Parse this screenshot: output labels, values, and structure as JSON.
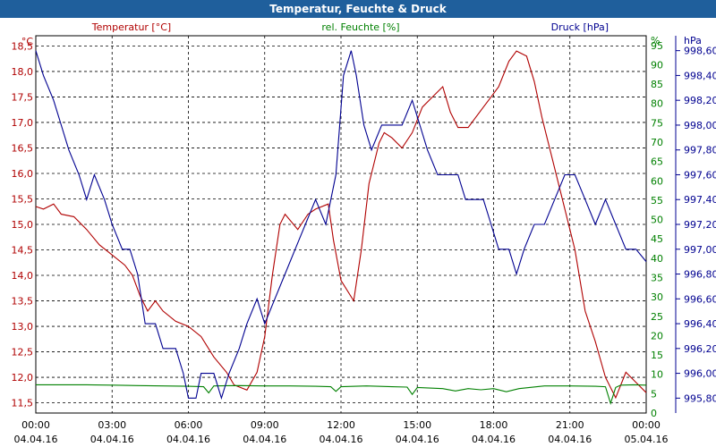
{
  "window": {
    "title": "Temperatur, Feuchte & Druck"
  },
  "chart_data": {
    "type": "line",
    "title": "Temperatur, Feuchte & Druck",
    "x_start_hour": 0,
    "x_end_hour": 24,
    "x_ticks": [
      {
        "time": "00:00",
        "date": "04.04.16"
      },
      {
        "time": "03:00",
        "date": "04.04.16"
      },
      {
        "time": "06:00",
        "date": "04.04.16"
      },
      {
        "time": "09:00",
        "date": "04.04.16"
      },
      {
        "time": "12:00",
        "date": "04.04.16"
      },
      {
        "time": "15:00",
        "date": "04.04.16"
      },
      {
        "time": "18:00",
        "date": "04.04.16"
      },
      {
        "time": "21:00",
        "date": "04.04.16"
      },
      {
        "time": "00:00",
        "date": "05.04.16"
      }
    ],
    "axes": {
      "temperature": {
        "label": "Temperatur [°C]",
        "unit": "°C",
        "color": "#b00000",
        "range": [
          11.3,
          18.7
        ],
        "ticks": [
          "11,5",
          "12,0",
          "12,5",
          "13,0",
          "13,5",
          "14,0",
          "14,5",
          "15,0",
          "15,5",
          "16,0",
          "16,5",
          "17,0",
          "17,5",
          "18,0",
          "18,5"
        ]
      },
      "humidity": {
        "label": "rel. Feuchte [%]",
        "unit": "%",
        "color": "#008000",
        "range": [
          0,
          97.5
        ],
        "ticks": [
          "0",
          "5",
          "10",
          "15",
          "20",
          "25",
          "30",
          "35",
          "40",
          "45",
          "50",
          "55",
          "60",
          "65",
          "70",
          "75",
          "80",
          "85",
          "90",
          "95"
        ]
      },
      "pressure": {
        "label": "Druck [hPa]",
        "unit": "hPa",
        "color": "#000090",
        "range": [
          995.68,
          998.72
        ],
        "ticks": [
          "995,80",
          "996,00",
          "996,20",
          "996,40",
          "996,60",
          "996,80",
          "997,00",
          "997,20",
          "997,40",
          "997,60",
          "997,80",
          "998,00",
          "998,20",
          "998,40",
          "998,60"
        ]
      }
    },
    "series": [
      {
        "name": "Temperatur",
        "axis": "temperature",
        "color": "#b00000",
        "data": [
          [
            0,
            15.35
          ],
          [
            0.3,
            15.3
          ],
          [
            0.7,
            15.4
          ],
          [
            1,
            15.2
          ],
          [
            1.5,
            15.15
          ],
          [
            2,
            14.9
          ],
          [
            2.5,
            14.6
          ],
          [
            3,
            14.4
          ],
          [
            3.5,
            14.2
          ],
          [
            3.8,
            14.0
          ],
          [
            4.1,
            13.6
          ],
          [
            4.4,
            13.3
          ],
          [
            4.7,
            13.5
          ],
          [
            5,
            13.3
          ],
          [
            5.5,
            13.1
          ],
          [
            6,
            13.0
          ],
          [
            6.5,
            12.8
          ],
          [
            7,
            12.4
          ],
          [
            7.5,
            12.1
          ],
          [
            7.8,
            11.85
          ],
          [
            8.3,
            11.75
          ],
          [
            8.7,
            12.1
          ],
          [
            9,
            12.8
          ],
          [
            9.3,
            14.0
          ],
          [
            9.6,
            15.0
          ],
          [
            9.8,
            15.2
          ],
          [
            10.3,
            14.9
          ],
          [
            10.7,
            15.2
          ],
          [
            11,
            15.3
          ],
          [
            11.5,
            15.4
          ],
          [
            11.7,
            14.7
          ],
          [
            12,
            13.9
          ],
          [
            12.5,
            13.5
          ],
          [
            12.8,
            14.5
          ],
          [
            13.1,
            15.8
          ],
          [
            13.5,
            16.6
          ],
          [
            13.7,
            16.8
          ],
          [
            14,
            16.7
          ],
          [
            14.4,
            16.5
          ],
          [
            14.8,
            16.8
          ],
          [
            15.2,
            17.3
          ],
          [
            15.6,
            17.5
          ],
          [
            16,
            17.7
          ],
          [
            16.3,
            17.2
          ],
          [
            16.6,
            16.9
          ],
          [
            17,
            16.9
          ],
          [
            17.3,
            17.1
          ],
          [
            17.6,
            17.3
          ],
          [
            17.9,
            17.5
          ],
          [
            18.2,
            17.7
          ],
          [
            18.6,
            18.2
          ],
          [
            18.9,
            18.4
          ],
          [
            19.3,
            18.3
          ],
          [
            19.6,
            17.8
          ],
          [
            19.9,
            17.1
          ],
          [
            20.3,
            16.3
          ],
          [
            20.8,
            15.3
          ],
          [
            21.2,
            14.5
          ],
          [
            21.6,
            13.3
          ],
          [
            22.0,
            12.7
          ],
          [
            22.4,
            12.0
          ],
          [
            22.8,
            11.6
          ],
          [
            23.2,
            12.1
          ],
          [
            23.6,
            11.9
          ],
          [
            24,
            11.7
          ]
        ]
      },
      {
        "name": "rel. Feuchte",
        "axis": "humidity",
        "color": "#008000",
        "data": [
          [
            0,
            7.3
          ],
          [
            1,
            7.3
          ],
          [
            2,
            7.3
          ],
          [
            3,
            7.2
          ],
          [
            4,
            7.1
          ],
          [
            5,
            7.0
          ],
          [
            6,
            6.9
          ],
          [
            6.6,
            6.8
          ],
          [
            6.8,
            5.2
          ],
          [
            7.0,
            7.0
          ],
          [
            8,
            7.1
          ],
          [
            9,
            7.0
          ],
          [
            10,
            7.0
          ],
          [
            11,
            6.9
          ],
          [
            11.6,
            6.8
          ],
          [
            11.8,
            5.6
          ],
          [
            12.0,
            6.8
          ],
          [
            13,
            7.0
          ],
          [
            14,
            6.8
          ],
          [
            14.6,
            6.7
          ],
          [
            14.8,
            4.8
          ],
          [
            15.0,
            6.6
          ],
          [
            16,
            6.3
          ],
          [
            16.5,
            5.7
          ],
          [
            17,
            6.3
          ],
          [
            17.5,
            6.0
          ],
          [
            18,
            6.3
          ],
          [
            18.5,
            5.5
          ],
          [
            19,
            6.3
          ],
          [
            20,
            7.0
          ],
          [
            21,
            7.0
          ],
          [
            22,
            6.9
          ],
          [
            22.4,
            6.8
          ],
          [
            22.6,
            2.5
          ],
          [
            22.8,
            6.6
          ],
          [
            23,
            7.2
          ],
          [
            23.5,
            7.3
          ],
          [
            24,
            7.2
          ]
        ]
      },
      {
        "name": "Druck",
        "axis": "pressure",
        "color": "#000090",
        "data": [
          [
            0,
            998.6
          ],
          [
            0.3,
            998.4
          ],
          [
            0.7,
            998.2
          ],
          [
            1,
            998.0
          ],
          [
            1.3,
            997.8
          ],
          [
            1.7,
            997.6
          ],
          [
            2,
            997.4
          ],
          [
            2.3,
            997.6
          ],
          [
            2.7,
            997.4
          ],
          [
            3,
            997.2
          ],
          [
            3.4,
            997.0
          ],
          [
            3.7,
            997.0
          ],
          [
            4,
            996.8
          ],
          [
            4.3,
            996.4
          ],
          [
            4.7,
            996.4
          ],
          [
            5,
            996.2
          ],
          [
            5.5,
            996.2
          ],
          [
            5.8,
            996.0
          ],
          [
            6,
            995.8
          ],
          [
            6.3,
            995.8
          ],
          [
            6.5,
            996.0
          ],
          [
            7,
            996.0
          ],
          [
            7.3,
            995.8
          ],
          [
            7.6,
            996.0
          ],
          [
            8,
            996.2
          ],
          [
            8.3,
            996.4
          ],
          [
            8.7,
            996.6
          ],
          [
            9,
            996.4
          ],
          [
            9.4,
            996.6
          ],
          [
            9.8,
            996.8
          ],
          [
            10.2,
            997.0
          ],
          [
            10.6,
            997.2
          ],
          [
            11,
            997.4
          ],
          [
            11.4,
            997.2
          ],
          [
            11.8,
            997.6
          ],
          [
            12.1,
            998.4
          ],
          [
            12.4,
            998.6
          ],
          [
            12.6,
            998.4
          ],
          [
            12.9,
            998.0
          ],
          [
            13.2,
            997.8
          ],
          [
            13.6,
            998.0
          ],
          [
            14,
            998.0
          ],
          [
            14.4,
            998.0
          ],
          [
            14.8,
            998.2
          ],
          [
            15.1,
            998.0
          ],
          [
            15.4,
            997.8
          ],
          [
            15.8,
            997.6
          ],
          [
            16.2,
            997.6
          ],
          [
            16.6,
            997.6
          ],
          [
            16.9,
            997.4
          ],
          [
            17.2,
            997.4
          ],
          [
            17.6,
            997.4
          ],
          [
            17.9,
            997.2
          ],
          [
            18.2,
            997.0
          ],
          [
            18.6,
            997.0
          ],
          [
            18.9,
            996.8
          ],
          [
            19.2,
            997.0
          ],
          [
            19.6,
            997.2
          ],
          [
            20,
            997.2
          ],
          [
            20.4,
            997.4
          ],
          [
            20.8,
            997.6
          ],
          [
            21.2,
            997.6
          ],
          [
            21.6,
            997.4
          ],
          [
            22,
            997.2
          ],
          [
            22.4,
            997.4
          ],
          [
            22.8,
            997.2
          ],
          [
            23.2,
            997.0
          ],
          [
            23.6,
            997.0
          ],
          [
            24,
            996.9
          ]
        ]
      }
    ]
  }
}
